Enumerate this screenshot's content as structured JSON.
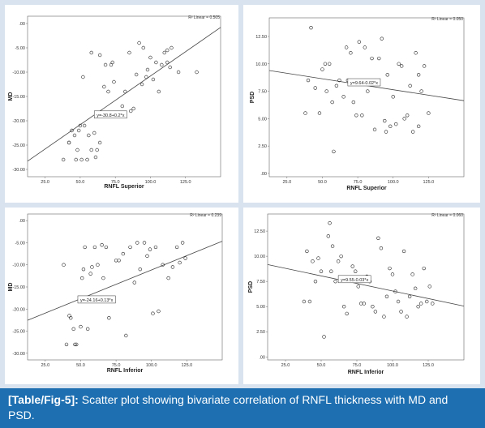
{
  "caption": {
    "label": "[Table/Fig-5]:",
    "text": " Scatter plot showing bivariate correlation of RNFL thickness with MD and PSD."
  },
  "colors": {
    "background": "#d9e3ef",
    "caption_bg": "#1d6fb1",
    "panel_bg": "#ffffff",
    "ink": "#333333"
  },
  "chart_data": [
    {
      "type": "scatter",
      "xlabel": "RNFL Superior",
      "ylabel": "MD",
      "xlim": [
        12.5,
        150
      ],
      "ylim": [
        -31.5,
        1.5
      ],
      "xticks": [
        25,
        50,
        75,
        100,
        125
      ],
      "xtick_labels": [
        "25.0",
        "50.0",
        "75.0",
        "100.0",
        "125.0"
      ],
      "yticks": [
        0,
        -5,
        -10,
        -15,
        -20,
        -25,
        -30
      ],
      "ytick_labels": [
        ".00",
        "-5.00",
        "-10.00",
        "-15.00",
        "-20.00",
        "-25.00",
        "-30.00"
      ],
      "fit": {
        "equation": "y=-30.8+0.2*x",
        "r2_label": "R² Linear = 0.505",
        "slope": 0.2,
        "intercept": -30.8,
        "label_x": 60
      },
      "points": [
        [
          38,
          -28
        ],
        [
          42,
          -24.5
        ],
        [
          44,
          -22
        ],
        [
          46,
          -23
        ],
        [
          47,
          -28
        ],
        [
          48,
          -26
        ],
        [
          49,
          -22
        ],
        [
          50,
          -21
        ],
        [
          51,
          -28
        ],
        [
          52,
          -11
        ],
        [
          53,
          -21
        ],
        [
          55,
          -28
        ],
        [
          56,
          -23
        ],
        [
          58,
          -26
        ],
        [
          60,
          -22.5
        ],
        [
          61,
          -27.5
        ],
        [
          62,
          -26
        ],
        [
          64,
          -24.5
        ],
        [
          58,
          -6
        ],
        [
          64,
          -6.5
        ],
        [
          67,
          -13
        ],
        [
          68,
          -8.5
        ],
        [
          70,
          -14
        ],
        [
          72,
          -8.5
        ],
        [
          73,
          -8
        ],
        [
          74,
          -12
        ],
        [
          80,
          -17
        ],
        [
          82,
          -14
        ],
        [
          85,
          -6
        ],
        [
          86,
          -18
        ],
        [
          88,
          -17.5
        ],
        [
          90,
          -10.5
        ],
        [
          92,
          -4
        ],
        [
          94,
          -12.5
        ],
        [
          95,
          -5
        ],
        [
          97,
          -11
        ],
        [
          98,
          -9.5
        ],
        [
          100,
          -7
        ],
        [
          102,
          -11.5
        ],
        [
          104,
          -8
        ],
        [
          106,
          -14
        ],
        [
          108,
          -8.5
        ],
        [
          110,
          -6
        ],
        [
          112,
          -5.5
        ],
        [
          112,
          -8
        ],
        [
          114,
          -9
        ],
        [
          115,
          -5
        ],
        [
          120,
          -10
        ],
        [
          133,
          -10
        ],
        [
          42,
          -24.5
        ]
      ]
    },
    {
      "type": "scatter",
      "xlabel": "RNFL Superior",
      "ylabel": "PSD",
      "xlim": [
        12.5,
        150
      ],
      "ylim": [
        -0.3,
        14.2
      ],
      "xticks": [
        25,
        50,
        75,
        100,
        125
      ],
      "xtick_labels": [
        "25.0",
        "50.0",
        "75.0",
        "100.0",
        "125.0"
      ],
      "yticks": [
        0,
        2.5,
        5,
        7.5,
        10,
        12.5
      ],
      "ytick_labels": [
        ".00",
        "2.50",
        "5.00",
        "7.50",
        "10.00",
        "12.50"
      ],
      "fit": {
        "equation": "y=9.64-0.02*x",
        "r2_label": "R² Linear = 0.050",
        "slope": -0.02,
        "intercept": 9.64,
        "label_x": 68
      },
      "points": [
        [
          38,
          5.5
        ],
        [
          40,
          8.5
        ],
        [
          42,
          13.3
        ],
        [
          45,
          7.8
        ],
        [
          48,
          5.5
        ],
        [
          50,
          9.5
        ],
        [
          52,
          10
        ],
        [
          53,
          7.5
        ],
        [
          55,
          10
        ],
        [
          57,
          6.5
        ],
        [
          58,
          2
        ],
        [
          60,
          8
        ],
        [
          62,
          8.5
        ],
        [
          65,
          7
        ],
        [
          67,
          11.5
        ],
        [
          68,
          8.5
        ],
        [
          70,
          11
        ],
        [
          72,
          6.5
        ],
        [
          74,
          5.3
        ],
        [
          76,
          12
        ],
        [
          78,
          5.3
        ],
        [
          80,
          11.5
        ],
        [
          82,
          7.5
        ],
        [
          85,
          10.5
        ],
        [
          87,
          4
        ],
        [
          90,
          10.5
        ],
        [
          92,
          12.3
        ],
        [
          94,
          4.8
        ],
        [
          95,
          3.8
        ],
        [
          96,
          9
        ],
        [
          98,
          4.3
        ],
        [
          100,
          7
        ],
        [
          102,
          4.5
        ],
        [
          104,
          10
        ],
        [
          106,
          9.8
        ],
        [
          108,
          5
        ],
        [
          110,
          5.3
        ],
        [
          112,
          8
        ],
        [
          114,
          3.8
        ],
        [
          116,
          11
        ],
        [
          118,
          9
        ],
        [
          120,
          7.5
        ],
        [
          122,
          9.8
        ],
        [
          125,
          5.5
        ],
        [
          118,
          4.3
        ]
      ]
    },
    {
      "type": "scatter",
      "xlabel": "RNFL Inferior",
      "ylabel": "MD",
      "xlim": [
        12.5,
        150
      ],
      "ylim": [
        -31.5,
        1.5
      ],
      "xticks": [
        25,
        50,
        75,
        100,
        125
      ],
      "xtick_labels": [
        "25.0",
        "50.0",
        "75.0",
        "100.0",
        "125.0"
      ],
      "yticks": [
        0,
        -5,
        -10,
        -15,
        -20,
        -25,
        -30
      ],
      "ytick_labels": [
        ".00",
        "-5.00",
        "-10.00",
        "-15.00",
        "-20.00",
        "-25.00",
        "-30.00"
      ],
      "fit": {
        "equation": "y=-24.16+0.13*x",
        "r2_label": "R² Linear = 0.239",
        "slope": 0.13,
        "intercept": -24.16,
        "label_x": 48
      },
      "points": [
        [
          38,
          -10
        ],
        [
          40,
          -28
        ],
        [
          42,
          -21.5
        ],
        [
          43,
          -22
        ],
        [
          45,
          -24.5
        ],
        [
          46,
          -28
        ],
        [
          47,
          -28
        ],
        [
          50,
          -24
        ],
        [
          51,
          -13
        ],
        [
          52,
          -11
        ],
        [
          53,
          -6
        ],
        [
          55,
          -24.5
        ],
        [
          57,
          -12
        ],
        [
          58,
          -10.5
        ],
        [
          60,
          -6
        ],
        [
          62,
          -10
        ],
        [
          65,
          -5.5
        ],
        [
          66,
          -13
        ],
        [
          68,
          -6
        ],
        [
          70,
          -22
        ],
        [
          75,
          -9
        ],
        [
          77,
          -9
        ],
        [
          80,
          -7.5
        ],
        [
          82,
          -26
        ],
        [
          85,
          -6
        ],
        [
          88,
          -14
        ],
        [
          90,
          -5
        ],
        [
          92,
          -11
        ],
        [
          95,
          -5
        ],
        [
          97,
          -8
        ],
        [
          99,
          -6.5
        ],
        [
          101,
          -21
        ],
        [
          103,
          -6
        ],
        [
          105,
          -20.5
        ],
        [
          108,
          -10
        ],
        [
          112,
          -13
        ],
        [
          115,
          -10.5
        ],
        [
          118,
          -6
        ],
        [
          120,
          -9.5
        ],
        [
          122,
          -5
        ],
        [
          124,
          -8.5
        ]
      ]
    },
    {
      "type": "scatter",
      "xlabel": "RNFL Inferior",
      "ylabel": "PSD",
      "xlim": [
        12.5,
        150
      ],
      "ylim": [
        -0.3,
        14.2
      ],
      "xticks": [
        25,
        50,
        75,
        100,
        125
      ],
      "xtick_labels": [
        "25.0",
        "50.0",
        "75.0",
        "100.0",
        "125.0"
      ],
      "yticks": [
        0,
        2.5,
        5,
        7.5,
        10,
        12.5
      ],
      "ytick_labels": [
        ".00",
        "2.50",
        "5.00",
        "7.50",
        "10.00",
        "12.50"
      ],
      "fit": {
        "equation": "y=9.55-0.03*x",
        "r2_label": "R² Linear = 0.060",
        "slope": -0.03,
        "intercept": 9.55,
        "label_x": 62
      },
      "points": [
        [
          38,
          5.5
        ],
        [
          40,
          10.5
        ],
        [
          42,
          5.5
        ],
        [
          44,
          9.5
        ],
        [
          46,
          7.5
        ],
        [
          48,
          9.8
        ],
        [
          50,
          8.5
        ],
        [
          52,
          2
        ],
        [
          55,
          12
        ],
        [
          56,
          13.3
        ],
        [
          57,
          8.5
        ],
        [
          58,
          11
        ],
        [
          60,
          7.5
        ],
        [
          62,
          9.5
        ],
        [
          64,
          10
        ],
        [
          66,
          5
        ],
        [
          68,
          4.3
        ],
        [
          72,
          9
        ],
        [
          74,
          8.5
        ],
        [
          76,
          7
        ],
        [
          78,
          5.3
        ],
        [
          80,
          5.3
        ],
        [
          82,
          8
        ],
        [
          84,
          7.5
        ],
        [
          86,
          5
        ],
        [
          88,
          4.5
        ],
        [
          90,
          11.8
        ],
        [
          92,
          10.8
        ],
        [
          94,
          4
        ],
        [
          96,
          6
        ],
        [
          98,
          8.8
        ],
        [
          100,
          8.2
        ],
        [
          102,
          6.5
        ],
        [
          104,
          5.5
        ],
        [
          106,
          4.5
        ],
        [
          108,
          10.5
        ],
        [
          110,
          4
        ],
        [
          112,
          6
        ],
        [
          114,
          8.2
        ],
        [
          116,
          6.8
        ],
        [
          118,
          5
        ],
        [
          120,
          5.3
        ],
        [
          122,
          8.8
        ],
        [
          124,
          5.5
        ],
        [
          126,
          7
        ],
        [
          128,
          5.3
        ]
      ]
    }
  ]
}
